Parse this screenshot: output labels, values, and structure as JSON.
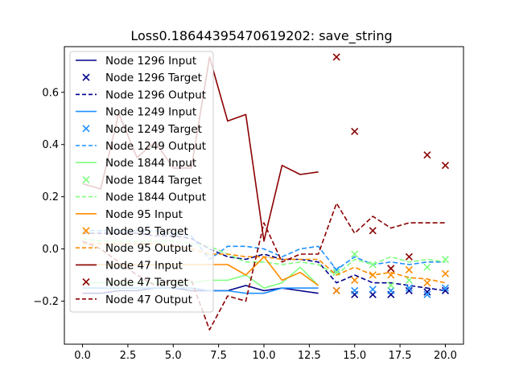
{
  "chart_data": {
    "type": "line",
    "title": "Loss0.18644395470619202: save_string",
    "xlabel": "",
    "ylabel": "",
    "xlim": [
      -1.0,
      21.0
    ],
    "ylim": [
      -0.365,
      0.775
    ],
    "xticks": [
      0.0,
      2.5,
      5.0,
      7.5,
      10.0,
      12.5,
      15.0,
      17.5,
      20.0
    ],
    "xtick_labels": [
      "0.0",
      "2.5",
      "5.0",
      "7.5",
      "10.0",
      "12.5",
      "15.0",
      "17.5",
      "20.0"
    ],
    "yticks": [
      -0.2,
      0.0,
      0.2,
      0.4,
      0.6
    ],
    "ytick_labels": [
      "−0.2",
      "0.0",
      "0.2",
      "0.4",
      "0.6"
    ],
    "grid": false,
    "legend_position": "upper-left",
    "series": [
      {
        "name": "Node 1296 Input",
        "kind": "input",
        "color": "#00008b",
        "x": [
          0,
          1,
          2,
          3,
          4,
          5,
          6,
          7,
          8,
          9,
          10,
          11,
          12,
          13
        ],
        "y": [
          -0.17,
          -0.17,
          -0.16,
          -0.16,
          -0.15,
          -0.15,
          -0.16,
          -0.16,
          -0.16,
          -0.14,
          -0.16,
          -0.15,
          -0.16,
          -0.17
        ]
      },
      {
        "name": "Node 1296 Target",
        "kind": "target",
        "color": "#00008b",
        "x": [
          14,
          15,
          16,
          17,
          18,
          19,
          20
        ],
        "y": [
          -0.16,
          -0.175,
          -0.175,
          -0.175,
          -0.16,
          -0.165,
          -0.16
        ]
      },
      {
        "name": "Node 1296 Output",
        "kind": "output",
        "color": "#00008b",
        "x": [
          0,
          1,
          2,
          3,
          4,
          5,
          6,
          7,
          8,
          9,
          10,
          11,
          12,
          13,
          14,
          15,
          16,
          17,
          18,
          19,
          20
        ],
        "y": [
          0.06,
          0.06,
          0.06,
          0.06,
          0.05,
          0.05,
          0.04,
          0.0,
          -0.03,
          -0.04,
          -0.02,
          -0.04,
          -0.04,
          -0.05,
          -0.13,
          -0.1,
          -0.13,
          -0.13,
          -0.14,
          -0.15,
          -0.16
        ]
      },
      {
        "name": "Node 1249 Input",
        "kind": "input",
        "color": "#1e90ff",
        "x": [
          0,
          1,
          2,
          3,
          4,
          5,
          6,
          7,
          8,
          9,
          10,
          11,
          12,
          13
        ],
        "y": [
          -0.15,
          -0.15,
          -0.15,
          -0.15,
          -0.15,
          -0.15,
          -0.15,
          -0.16,
          -0.16,
          -0.17,
          -0.17,
          -0.15,
          -0.15,
          -0.15
        ]
      },
      {
        "name": "Node 1249 Target",
        "kind": "target",
        "color": "#1e90ff",
        "x": [
          14,
          15,
          16,
          17,
          18,
          19,
          20
        ],
        "y": [
          -0.08,
          -0.16,
          -0.155,
          -0.16,
          -0.15,
          -0.175,
          -0.15
        ]
      },
      {
        "name": "Node 1249 Output",
        "kind": "output",
        "color": "#1e90ff",
        "x": [
          0,
          1,
          2,
          3,
          4,
          5,
          6,
          7,
          8,
          9,
          10,
          11,
          12,
          13,
          14,
          15,
          16,
          17,
          18,
          19,
          20
        ],
        "y": [
          0.07,
          0.07,
          0.07,
          0.07,
          0.07,
          0.06,
          0.05,
          -0.04,
          0.01,
          0.01,
          0.0,
          -0.03,
          0.0,
          0.01,
          -0.08,
          -0.03,
          -0.06,
          -0.05,
          -0.06,
          -0.05,
          -0.05
        ]
      },
      {
        "name": "Node 1844 Input",
        "kind": "input",
        "color": "#7fff7f",
        "x": [
          0,
          1,
          2,
          3,
          4,
          5,
          6,
          7,
          8,
          9,
          10,
          11,
          12,
          13
        ],
        "y": [
          -0.13,
          -0.13,
          -0.13,
          -0.13,
          -0.13,
          -0.13,
          -0.13,
          -0.12,
          -0.12,
          -0.1,
          -0.15,
          -0.13,
          -0.07,
          -0.14
        ]
      },
      {
        "name": "Node 1844 Target",
        "kind": "target",
        "color": "#7fff7f",
        "x": [
          14,
          15,
          16,
          17,
          18,
          19,
          20
        ],
        "y": [
          -0.09,
          -0.02,
          -0.06,
          -0.14,
          -0.12,
          -0.07,
          -0.04
        ]
      },
      {
        "name": "Node 1844 Output",
        "kind": "output",
        "color": "#7fff7f",
        "x": [
          0,
          1,
          2,
          3,
          4,
          5,
          6,
          7,
          8,
          9,
          10,
          11,
          12,
          13,
          14,
          15,
          16,
          17,
          18,
          19,
          20
        ],
        "y": [
          0.04,
          0.03,
          0.03,
          0.03,
          0.03,
          0.03,
          0.02,
          0.01,
          -0.02,
          -0.05,
          -0.05,
          -0.06,
          -0.05,
          -0.06,
          -0.1,
          -0.04,
          -0.06,
          -0.03,
          -0.05,
          -0.04,
          -0.05
        ]
      },
      {
        "name": "Node 95 Input",
        "kind": "input",
        "color": "#ff8c00",
        "x": [
          0,
          1,
          2,
          3,
          4,
          5,
          6,
          7,
          8,
          9,
          10,
          11,
          12,
          13
        ],
        "y": [
          -0.06,
          -0.06,
          -0.06,
          -0.06,
          -0.06,
          -0.06,
          -0.06,
          -0.06,
          -0.06,
          -0.1,
          -0.03,
          -0.12,
          -0.09,
          -0.14
        ]
      },
      {
        "name": "Node 95 Target",
        "kind": "target",
        "color": "#ff8c00",
        "x": [
          14,
          15,
          16,
          17,
          18,
          19,
          20
        ],
        "y": [
          -0.16,
          -0.12,
          -0.1,
          -0.1,
          -0.08,
          -0.13,
          -0.095
        ]
      },
      {
        "name": "Node 95 Output",
        "kind": "output",
        "color": "#ff8c00",
        "x": [
          0,
          1,
          2,
          3,
          4,
          5,
          6,
          7,
          8,
          9,
          10,
          11,
          12,
          13,
          14,
          15,
          16,
          17,
          18,
          19,
          20
        ],
        "y": [
          0.02,
          0.02,
          0.02,
          0.02,
          0.02,
          0.01,
          0.0,
          -0.02,
          -0.02,
          -0.03,
          -0.03,
          -0.04,
          -0.04,
          -0.04,
          -0.1,
          -0.07,
          -0.1,
          -0.09,
          -0.11,
          -0.115,
          -0.13
        ]
      },
      {
        "name": "Node 47 Input",
        "kind": "input",
        "color": "#8b0000",
        "x": [
          0,
          1,
          2,
          3,
          4,
          5,
          6,
          7,
          8,
          9,
          10,
          11,
          12,
          13
        ],
        "y": [
          0.25,
          0.23,
          0.52,
          0.35,
          0.41,
          0.31,
          0.31,
          0.735,
          0.49,
          0.515,
          0.03,
          0.32,
          0.285,
          0.295
        ]
      },
      {
        "name": "Node 47 Target",
        "kind": "target",
        "color": "#8b0000",
        "x": [
          14,
          15,
          16,
          17,
          18,
          19,
          20
        ],
        "y": [
          0.735,
          0.45,
          0.07,
          -0.075,
          -0.03,
          0.36,
          0.32
        ]
      },
      {
        "name": "Node 47 Output",
        "kind": "output",
        "color": "#8b0000",
        "x": [
          0,
          1,
          2,
          3,
          4,
          5,
          6,
          7,
          8,
          9,
          10,
          11,
          12,
          13,
          14,
          15,
          16,
          17,
          18,
          19,
          20
        ],
        "y": [
          0.03,
          0.0,
          -0.05,
          -0.1,
          -0.14,
          -0.12,
          -0.12,
          -0.31,
          -0.18,
          -0.2,
          0.1,
          -0.05,
          -0.02,
          -0.02,
          0.175,
          0.06,
          0.125,
          0.08,
          0.1,
          0.1,
          0.1
        ]
      }
    ]
  }
}
